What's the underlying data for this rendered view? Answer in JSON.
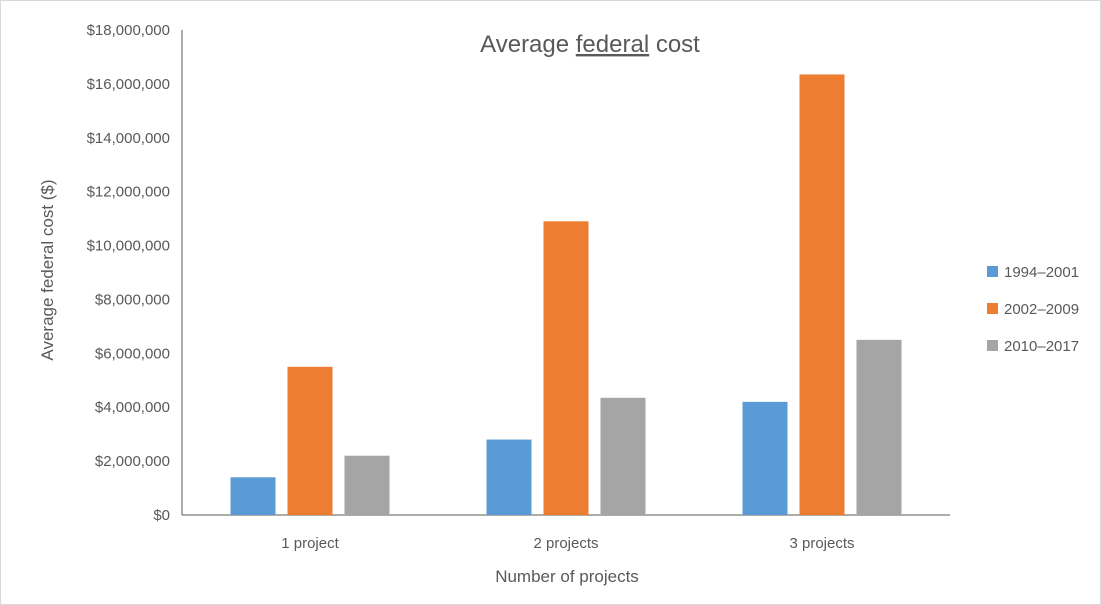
{
  "chart_data": {
    "type": "bar",
    "title_parts": [
      "Average ",
      "federal",
      " cost"
    ],
    "xlabel": "Number of projects",
    "ylabel": "Average federal cost ($)",
    "categories": [
      "1 project",
      "2 projects",
      "3 projects"
    ],
    "series": [
      {
        "name": "1994–2001",
        "color": "#5b9bd5",
        "values": [
          1400000,
          2800000,
          4200000
        ]
      },
      {
        "name": "2002–2009",
        "color": "#ed7d31",
        "values": [
          5500000,
          10900000,
          16350000
        ]
      },
      {
        "name": "2010–2017",
        "color": "#a5a5a5",
        "values": [
          2200000,
          4350000,
          6500000
        ]
      }
    ],
    "ylim": [
      0,
      18000000
    ],
    "y_ticks": [
      "$0",
      "$2,000,000",
      "$4,000,000",
      "$6,000,000",
      "$8,000,000",
      "$10,000,000",
      "$12,000,000",
      "$14,000,000",
      "$16,000,000",
      "$18,000,000"
    ],
    "gridlines": false,
    "legend_position": "right"
  }
}
